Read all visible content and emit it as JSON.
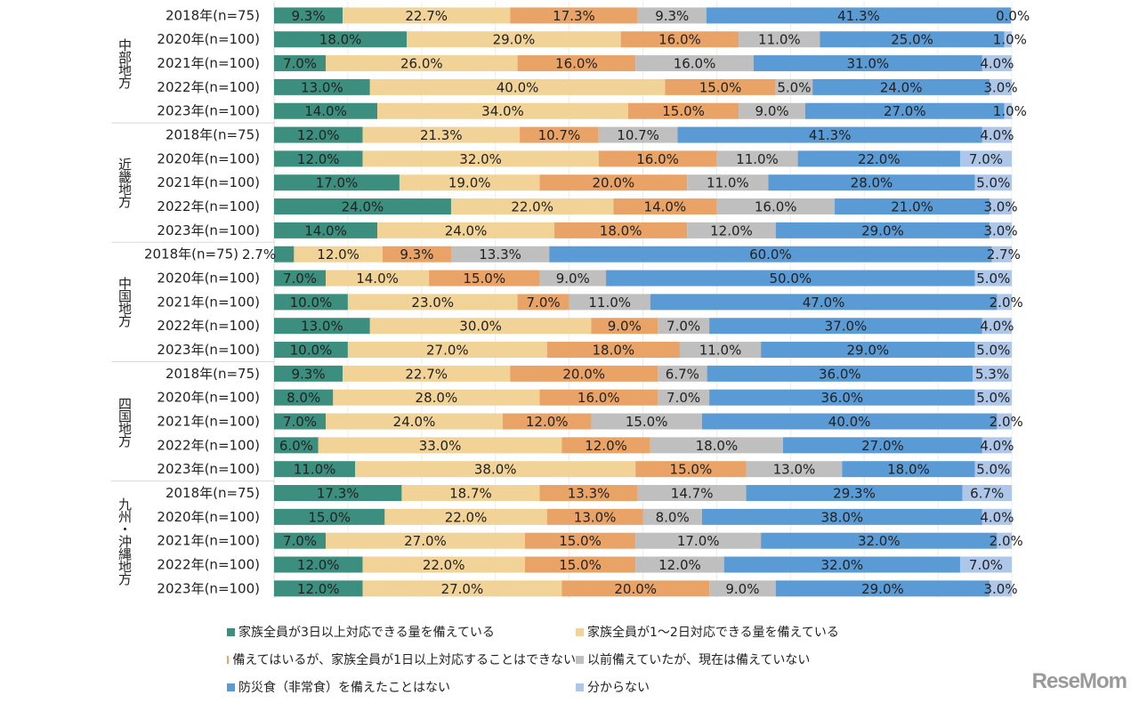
{
  "chart_data": {
    "type": "bar",
    "orientation": "horizontal-stacked-100",
    "xlim": [
      0,
      100
    ],
    "series": [
      {
        "name": "家族全員が3日以上対応できる量を備えている",
        "color": "#3c8f7e"
      },
      {
        "name": "家族全員が1～2日対応できる量を備えている",
        "color": "#f2d397"
      },
      {
        "name": "備えてはいるが、家族全員が1日以上対応することはできない",
        "color": "#e9a366"
      },
      {
        "name": "以前備えていたが、現在は備えていない",
        "color": "#bfbfbf"
      },
      {
        "name": "防災食（非常食）を備えたことはない",
        "color": "#5b9bd5"
      },
      {
        "name": "分からない",
        "color": "#aec6e8"
      }
    ],
    "groups": [
      {
        "name": "中部地方",
        "rows": [
          {
            "label": "2018年(n=75)",
            "values": [
              9.3,
              22.7,
              17.3,
              9.3,
              41.3,
              0.0
            ]
          },
          {
            "label": "2020年(n=100)",
            "values": [
              18.0,
              29.0,
              16.0,
              11.0,
              25.0,
              1.0
            ]
          },
          {
            "label": "2021年(n=100)",
            "values": [
              7.0,
              26.0,
              16.0,
              16.0,
              31.0,
              4.0
            ]
          },
          {
            "label": "2022年(n=100)",
            "values": [
              13.0,
              40.0,
              15.0,
              5.0,
              24.0,
              3.0
            ]
          },
          {
            "label": "2023年(n=100)",
            "values": [
              14.0,
              34.0,
              15.0,
              9.0,
              27.0,
              1.0
            ]
          }
        ]
      },
      {
        "name": "近畿地方",
        "rows": [
          {
            "label": "2018年(n=75)",
            "values": [
              12.0,
              21.3,
              10.7,
              10.7,
              41.3,
              4.0
            ]
          },
          {
            "label": "2020年(n=100)",
            "values": [
              12.0,
              32.0,
              16.0,
              11.0,
              22.0,
              7.0
            ]
          },
          {
            "label": "2021年(n=100)",
            "values": [
              17.0,
              19.0,
              20.0,
              11.0,
              28.0,
              5.0
            ]
          },
          {
            "label": "2022年(n=100)",
            "values": [
              24.0,
              22.0,
              14.0,
              16.0,
              21.0,
              3.0
            ]
          },
          {
            "label": "2023年(n=100)",
            "values": [
              14.0,
              24.0,
              18.0,
              12.0,
              29.0,
              3.0
            ]
          }
        ]
      },
      {
        "name": "中国地方",
        "rows": [
          {
            "label": "2018年(n=75)",
            "values": [
              2.7,
              12.0,
              9.3,
              13.3,
              60.0,
              2.7
            ]
          },
          {
            "label": "2020年(n=100)",
            "values": [
              7.0,
              14.0,
              15.0,
              9.0,
              50.0,
              5.0
            ]
          },
          {
            "label": "2021年(n=100)",
            "values": [
              10.0,
              23.0,
              7.0,
              11.0,
              47.0,
              2.0
            ]
          },
          {
            "label": "2022年(n=100)",
            "values": [
              13.0,
              30.0,
              9.0,
              7.0,
              37.0,
              4.0
            ]
          },
          {
            "label": "2023年(n=100)",
            "values": [
              10.0,
              27.0,
              18.0,
              11.0,
              29.0,
              5.0
            ]
          }
        ]
      },
      {
        "name": "四国地方",
        "rows": [
          {
            "label": "2018年(n=75)",
            "values": [
              9.3,
              22.7,
              20.0,
              6.7,
              36.0,
              5.3
            ]
          },
          {
            "label": "2020年(n=100)",
            "values": [
              8.0,
              28.0,
              16.0,
              7.0,
              36.0,
              5.0
            ]
          },
          {
            "label": "2021年(n=100)",
            "values": [
              7.0,
              24.0,
              12.0,
              15.0,
              40.0,
              2.0
            ]
          },
          {
            "label": "2022年(n=100)",
            "values": [
              6.0,
              33.0,
              12.0,
              18.0,
              27.0,
              4.0
            ]
          },
          {
            "label": "2023年(n=100)",
            "values": [
              11.0,
              38.0,
              15.0,
              13.0,
              18.0,
              5.0
            ]
          }
        ]
      },
      {
        "name": "九州・沖縄地方",
        "rows": [
          {
            "label": "2018年(n=75)",
            "values": [
              17.3,
              18.7,
              13.3,
              14.7,
              29.3,
              6.7
            ]
          },
          {
            "label": "2020年(n=100)",
            "values": [
              15.0,
              22.0,
              13.0,
              8.0,
              38.0,
              4.0
            ]
          },
          {
            "label": "2021年(n=100)",
            "values": [
              7.0,
              27.0,
              15.0,
              17.0,
              32.0,
              2.0
            ]
          },
          {
            "label": "2022年(n=100)",
            "values": [
              12.0,
              22.0,
              15.0,
              12.0,
              32.0,
              7.0
            ]
          },
          {
            "label": "2023年(n=100)",
            "values": [
              12.0,
              27.0,
              20.0,
              9.0,
              29.0,
              3.0
            ]
          }
        ]
      }
    ],
    "value_format": "percent-1dp",
    "legend_position": "bottom",
    "grid": true
  },
  "watermark": "ReseMom"
}
